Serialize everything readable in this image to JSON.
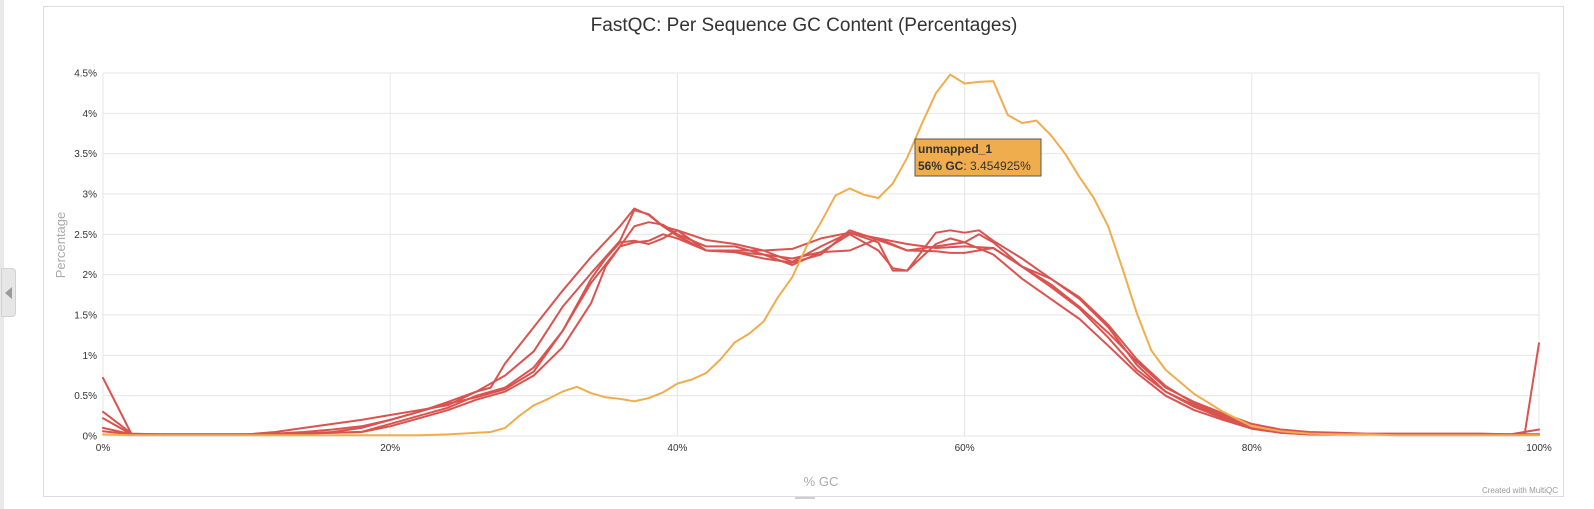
{
  "chart_data": {
    "type": "line",
    "title": "FastQC: Per Sequence GC Content (Percentages)",
    "xlabel": "% GC",
    "ylabel": "Percentage",
    "xlim": [
      0,
      100
    ],
    "ylim": [
      0,
      4.5
    ],
    "x_ticks": [
      "0%",
      "20%",
      "40%",
      "60%",
      "80%",
      "100%"
    ],
    "y_ticks": [
      "0%",
      "0.5%",
      "1%",
      "1.5%",
      "2%",
      "2.5%",
      "3%",
      "3.5%",
      "4%",
      "4.5%"
    ],
    "grid": true,
    "legend": false,
    "credits": "Created with MultiQC",
    "tooltip": {
      "series": "unmapped_1",
      "x_label": "56% GC",
      "y_label": "3.454925%",
      "x": 56,
      "y": 3.454925
    },
    "series": [
      {
        "name": "unmapped_1",
        "color": "#f0ad4e",
        "x": [
          0,
          2,
          4,
          6,
          8,
          10,
          12,
          14,
          16,
          18,
          20,
          22,
          24,
          25,
          26,
          27,
          28,
          29,
          30,
          31,
          32,
          33,
          34,
          35,
          36,
          37,
          38,
          39,
          40,
          41,
          42,
          43,
          44,
          45,
          46,
          47,
          48,
          49,
          50,
          51,
          52,
          53,
          54,
          55,
          56,
          57,
          58,
          59,
          60,
          61,
          62,
          63,
          64,
          65,
          66,
          67,
          68,
          69,
          70,
          71,
          72,
          73,
          74,
          76,
          78,
          80,
          82,
          84,
          86,
          88,
          90,
          92,
          94,
          96,
          98,
          99,
          100
        ],
        "y": [
          0.02,
          0.01,
          0.01,
          0.01,
          0.01,
          0.01,
          0.01,
          0.01,
          0.01,
          0.01,
          0.01,
          0.01,
          0.02,
          0.03,
          0.04,
          0.05,
          0.1,
          0.25,
          0.38,
          0.46,
          0.55,
          0.61,
          0.53,
          0.48,
          0.46,
          0.43,
          0.47,
          0.54,
          0.65,
          0.7,
          0.78,
          0.95,
          1.16,
          1.27,
          1.42,
          1.72,
          1.97,
          2.35,
          2.65,
          2.98,
          3.07,
          2.99,
          2.95,
          3.13,
          3.45,
          3.86,
          4.25,
          4.48,
          4.37,
          4.39,
          4.4,
          3.98,
          3.88,
          3.91,
          3.73,
          3.5,
          3.21,
          2.95,
          2.6,
          2.07,
          1.52,
          1.06,
          0.82,
          0.52,
          0.3,
          0.12,
          0.06,
          0.03,
          0.02,
          0.02,
          0.01,
          0.01,
          0.01,
          0.01,
          0.01,
          0.01,
          0.01
        ]
      },
      {
        "name": "",
        "color": "#d9534f",
        "x": [
          0,
          2,
          4,
          6,
          8,
          10,
          12,
          14,
          16,
          18,
          20,
          22,
          24,
          26,
          28,
          30,
          32,
          34,
          36,
          37,
          38,
          39,
          40,
          42,
          44,
          46,
          48,
          50,
          52,
          54,
          56,
          58,
          60,
          62,
          64,
          66,
          68,
          70,
          72,
          74,
          76,
          78,
          80,
          82,
          84,
          86,
          88,
          90,
          92,
          94,
          96,
          98,
          99,
          100
        ],
        "y": [
          0.72,
          0.02,
          0.02,
          0.02,
          0.02,
          0.02,
          0.05,
          0.1,
          0.15,
          0.2,
          0.26,
          0.32,
          0.38,
          0.55,
          0.75,
          1.05,
          1.6,
          2.02,
          2.42,
          2.8,
          2.75,
          2.6,
          2.55,
          2.43,
          2.38,
          2.3,
          2.32,
          2.45,
          2.52,
          2.45,
          2.38,
          2.33,
          2.35,
          2.33,
          2.1,
          1.88,
          1.6,
          1.28,
          0.92,
          0.6,
          0.42,
          0.28,
          0.15,
          0.08,
          0.05,
          0.04,
          0.03,
          0.03,
          0.03,
          0.03,
          0.03,
          0.02,
          0.02,
          1.15
        ]
      },
      {
        "name": "",
        "color": "#d9534f",
        "x": [
          0,
          2,
          4,
          6,
          8,
          10,
          12,
          14,
          16,
          18,
          20,
          22,
          24,
          26,
          27,
          28,
          30,
          32,
          34,
          36,
          37,
          38,
          39,
          40,
          42,
          44,
          46,
          48,
          50,
          52,
          54,
          56,
          58,
          59,
          60,
          62,
          64,
          66,
          68,
          70,
          72,
          74,
          76,
          78,
          80,
          82,
          84,
          86,
          88,
          90,
          92,
          94,
          96,
          98,
          100
        ],
        "y": [
          0.3,
          0.03,
          0.02,
          0.02,
          0.02,
          0.02,
          0.03,
          0.05,
          0.08,
          0.12,
          0.2,
          0.3,
          0.42,
          0.55,
          0.6,
          0.9,
          1.35,
          1.8,
          2.22,
          2.6,
          2.82,
          2.74,
          2.6,
          2.48,
          2.3,
          2.28,
          2.2,
          2.15,
          2.25,
          2.55,
          2.43,
          2.3,
          2.29,
          2.27,
          2.27,
          2.33,
          2.1,
          1.85,
          1.58,
          1.22,
          0.82,
          0.55,
          0.38,
          0.24,
          0.12,
          0.06,
          0.04,
          0.03,
          0.02,
          0.02,
          0.02,
          0.02,
          0.02,
          0.02,
          0.02
        ]
      },
      {
        "name": "",
        "color": "#d9534f",
        "x": [
          0,
          2,
          4,
          6,
          8,
          10,
          12,
          14,
          16,
          18,
          20,
          22,
          24,
          26,
          28,
          30,
          32,
          34,
          35,
          36,
          37,
          38,
          39,
          40,
          42,
          44,
          46,
          48,
          50,
          52,
          54,
          55,
          56,
          58,
          59,
          60,
          61,
          62,
          64,
          66,
          68,
          70,
          72,
          74,
          76,
          78,
          80,
          82,
          84,
          86,
          88,
          90,
          92,
          94,
          96,
          98,
          100
        ],
        "y": [
          0.22,
          0.02,
          0.02,
          0.02,
          0.02,
          0.02,
          0.02,
          0.03,
          0.04,
          0.05,
          0.15,
          0.25,
          0.35,
          0.5,
          0.6,
          0.85,
          1.3,
          1.95,
          2.2,
          2.4,
          2.42,
          2.38,
          2.45,
          2.55,
          2.3,
          2.28,
          2.25,
          2.12,
          2.28,
          2.5,
          2.3,
          2.08,
          2.05,
          2.38,
          2.45,
          2.4,
          2.5,
          2.4,
          2.1,
          1.95,
          1.72,
          1.38,
          0.95,
          0.62,
          0.4,
          0.26,
          0.12,
          0.05,
          0.03,
          0.02,
          0.02,
          0.02,
          0.02,
          0.02,
          0.02,
          0.02,
          0.02
        ]
      },
      {
        "name": "",
        "color": "#d9534f",
        "x": [
          0,
          2,
          4,
          6,
          8,
          10,
          12,
          14,
          16,
          18,
          20,
          22,
          24,
          26,
          28,
          30,
          32,
          34,
          35,
          36,
          37,
          38,
          39,
          40,
          42,
          44,
          46,
          48,
          50,
          52,
          54,
          55,
          56,
          58,
          59,
          60,
          61,
          62,
          64,
          66,
          68,
          70,
          72,
          74,
          76,
          78,
          80,
          82,
          84,
          86,
          88,
          90,
          92,
          94,
          96,
          98,
          100
        ],
        "y": [
          0.06,
          0.02,
          0.02,
          0.02,
          0.02,
          0.02,
          0.02,
          0.03,
          0.04,
          0.05,
          0.12,
          0.22,
          0.32,
          0.45,
          0.55,
          0.75,
          1.1,
          1.65,
          2.1,
          2.35,
          2.4,
          2.42,
          2.5,
          2.45,
          2.3,
          2.3,
          2.3,
          2.16,
          2.35,
          2.52,
          2.4,
          2.05,
          2.05,
          2.52,
          2.55,
          2.52,
          2.55,
          2.42,
          2.2,
          1.95,
          1.7,
          1.35,
          0.88,
          0.55,
          0.36,
          0.22,
          0.1,
          0.04,
          0.02,
          0.02,
          0.02,
          0.02,
          0.02,
          0.02,
          0.02,
          0.02,
          0.08
        ]
      },
      {
        "name": "",
        "color": "#d9534f",
        "x": [
          0,
          2,
          4,
          6,
          8,
          10,
          12,
          14,
          16,
          18,
          20,
          22,
          24,
          26,
          28,
          30,
          32,
          34,
          36,
          37,
          38,
          39,
          40,
          42,
          44,
          46,
          48,
          50,
          52,
          54,
          56,
          58,
          60,
          62,
          64,
          66,
          68,
          70,
          72,
          74,
          76,
          78,
          80,
          82,
          84,
          86,
          88,
          90,
          92,
          94,
          96,
          98,
          100
        ],
        "y": [
          0.1,
          0.02,
          0.02,
          0.02,
          0.02,
          0.02,
          0.02,
          0.03,
          0.05,
          0.1,
          0.2,
          0.3,
          0.4,
          0.48,
          0.58,
          0.8,
          1.3,
          1.9,
          2.35,
          2.6,
          2.65,
          2.62,
          2.5,
          2.35,
          2.35,
          2.25,
          2.2,
          2.28,
          2.3,
          2.45,
          2.3,
          2.35,
          2.4,
          2.25,
          1.95,
          1.7,
          1.45,
          1.12,
          0.78,
          0.5,
          0.32,
          0.2,
          0.09,
          0.04,
          0.02,
          0.02,
          0.02,
          0.02,
          0.02,
          0.02,
          0.02,
          0.02,
          0.02
        ]
      }
    ]
  }
}
